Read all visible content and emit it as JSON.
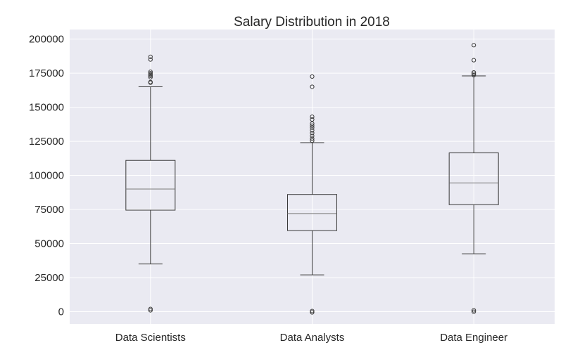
{
  "chart_data": {
    "type": "boxplot",
    "title": "Salary Distribution in 2018",
    "xlabel": "",
    "ylabel": "",
    "categories": [
      "Data Scientists",
      "Data Analysts",
      "Data Engineer"
    ],
    "ylim": [
      -9000,
      207000
    ],
    "yticks": [
      0,
      25000,
      50000,
      75000,
      100000,
      125000,
      150000,
      175000,
      200000
    ],
    "ytick_labels": [
      "0",
      "25000",
      "50000",
      "75000",
      "100000",
      "125000",
      "150000",
      "175000",
      "200000"
    ],
    "grid": true,
    "colors": {
      "background": "#EAEAF2",
      "grid": "#FFFFFF",
      "box_edge": "#3a3a3a",
      "median": "#7a7a7a",
      "text": "#262626"
    },
    "boxes": [
      {
        "name": "Data Scientists",
        "q1": 74500,
        "median": 90000,
        "q3": 111000,
        "whisker_low": 35000,
        "whisker_high": 165000,
        "outliers": [
          187000,
          185000,
          176000,
          175000,
          174000,
          173000,
          172000,
          168500,
          168000,
          2000,
          1000
        ]
      },
      {
        "name": "Data Analysts",
        "q1": 59500,
        "median": 72000,
        "q3": 86000,
        "whisker_low": 27000,
        "whisker_high": 124000,
        "outliers": [
          172500,
          165000,
          143000,
          141000,
          138000,
          136500,
          135000,
          133000,
          131000,
          129000,
          127000,
          125500,
          500,
          -500
        ]
      },
      {
        "name": "Data Engineer",
        "q1": 78500,
        "median": 94500,
        "q3": 116500,
        "whisker_low": 42500,
        "whisker_high": 173000,
        "outliers": [
          195500,
          184500,
          175500,
          174500,
          173500,
          1000,
          0
        ]
      }
    ]
  }
}
